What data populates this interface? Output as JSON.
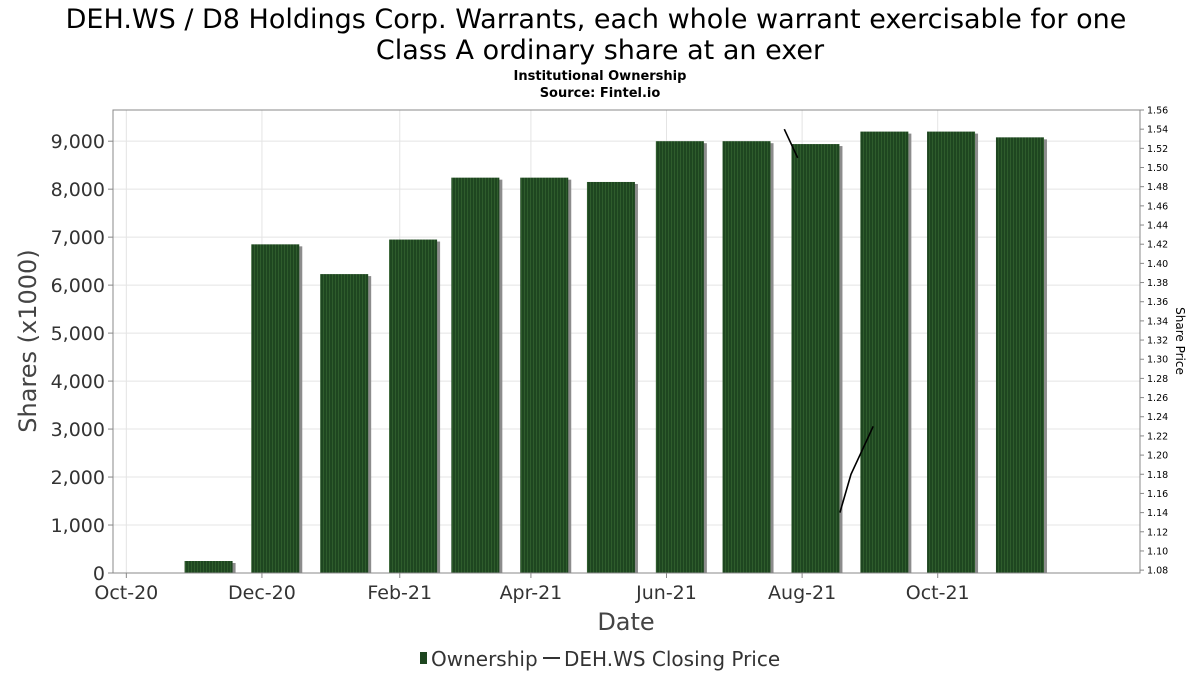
{
  "chart_data": {
    "type": "bar",
    "title": "DEH.WS / D8 Holdings Corp. Warrants, each whole warrant exercisable for one Class A ordinary share at an exer",
    "title_lines": [
      "DEH.WS / D8 Holdings Corp. Warrants, each whole warrant exercisable for one",
      "Class A ordinary share at an exer"
    ],
    "subtitle_lines": [
      "Institutional Ownership",
      "Source: Fintel.io"
    ],
    "xlabel": "Date",
    "ylabel": "Shares (x1000)",
    "y2label": "Share Price",
    "ylim": [
      0,
      9650
    ],
    "y2lim": [
      1.077,
      1.56
    ],
    "yticks": [
      0,
      1000,
      2000,
      3000,
      4000,
      5000,
      6000,
      7000,
      8000,
      9000
    ],
    "ytick_labels": [
      "0",
      "1,000",
      "2,000",
      "3,000",
      "4,000",
      "5,000",
      "6,000",
      "7,000",
      "8,000",
      "9,000"
    ],
    "y2ticks": [
      1.08,
      1.1,
      1.12,
      1.14,
      1.16,
      1.18,
      1.2,
      1.22,
      1.24,
      1.26,
      1.28,
      1.3,
      1.32,
      1.34,
      1.36,
      1.38,
      1.4,
      1.42,
      1.44,
      1.46,
      1.48,
      1.5,
      1.52,
      1.54,
      1.56
    ],
    "y2tick_labels": [
      "1.08",
      "1.10",
      "1.12",
      "1.14",
      "1.16",
      "1.18",
      "1.20",
      "1.22",
      "1.24",
      "1.26",
      "1.28",
      "1.30",
      "1.32",
      "1.34",
      "1.36",
      "1.38",
      "1.40",
      "1.42",
      "1.44",
      "1.46",
      "1.48",
      "1.50",
      "1.52",
      "1.54",
      "1.56"
    ],
    "xlim": [
      "2020-09-25",
      "2021-12-31"
    ],
    "xticks": [
      "2020-10-01",
      "2020-12-01",
      "2021-02-01",
      "2021-04-01",
      "2021-06-01",
      "2021-08-01",
      "2021-10-01"
    ],
    "xtick_labels": [
      "Oct-20",
      "Dec-20",
      "Feb-21",
      "Apr-21",
      "Jun-21",
      "Aug-21",
      "Oct-21"
    ],
    "grid": true,
    "legend_position": "bottom-center",
    "series": [
      {
        "name": "Ownership",
        "kind": "bar",
        "color": "#1e4620",
        "x": [
          "2020-11-07",
          "2020-12-07",
          "2021-01-07",
          "2021-02-07",
          "2021-03-07",
          "2021-04-07",
          "2021-05-07",
          "2021-06-07",
          "2021-07-07",
          "2021-08-07",
          "2021-09-07",
          "2021-10-07",
          "2021-11-07"
        ],
        "values": [
          250,
          6850,
          6230,
          6950,
          8240,
          8240,
          8150,
          9000,
          9000,
          8940,
          9200,
          9200,
          9080
        ]
      },
      {
        "name": "DEH.WS Closing Price",
        "kind": "line",
        "color": "#000000",
        "segments": [
          {
            "x": [
              "2021-07-24",
              "2021-07-30"
            ],
            "values": [
              1.54,
              1.51
            ]
          },
          {
            "x": [
              "2021-08-18",
              "2021-08-23",
              "2021-08-31",
              "2021-09-02"
            ],
            "values": [
              1.14,
              1.18,
              1.22,
              1.23
            ]
          }
        ]
      }
    ]
  }
}
